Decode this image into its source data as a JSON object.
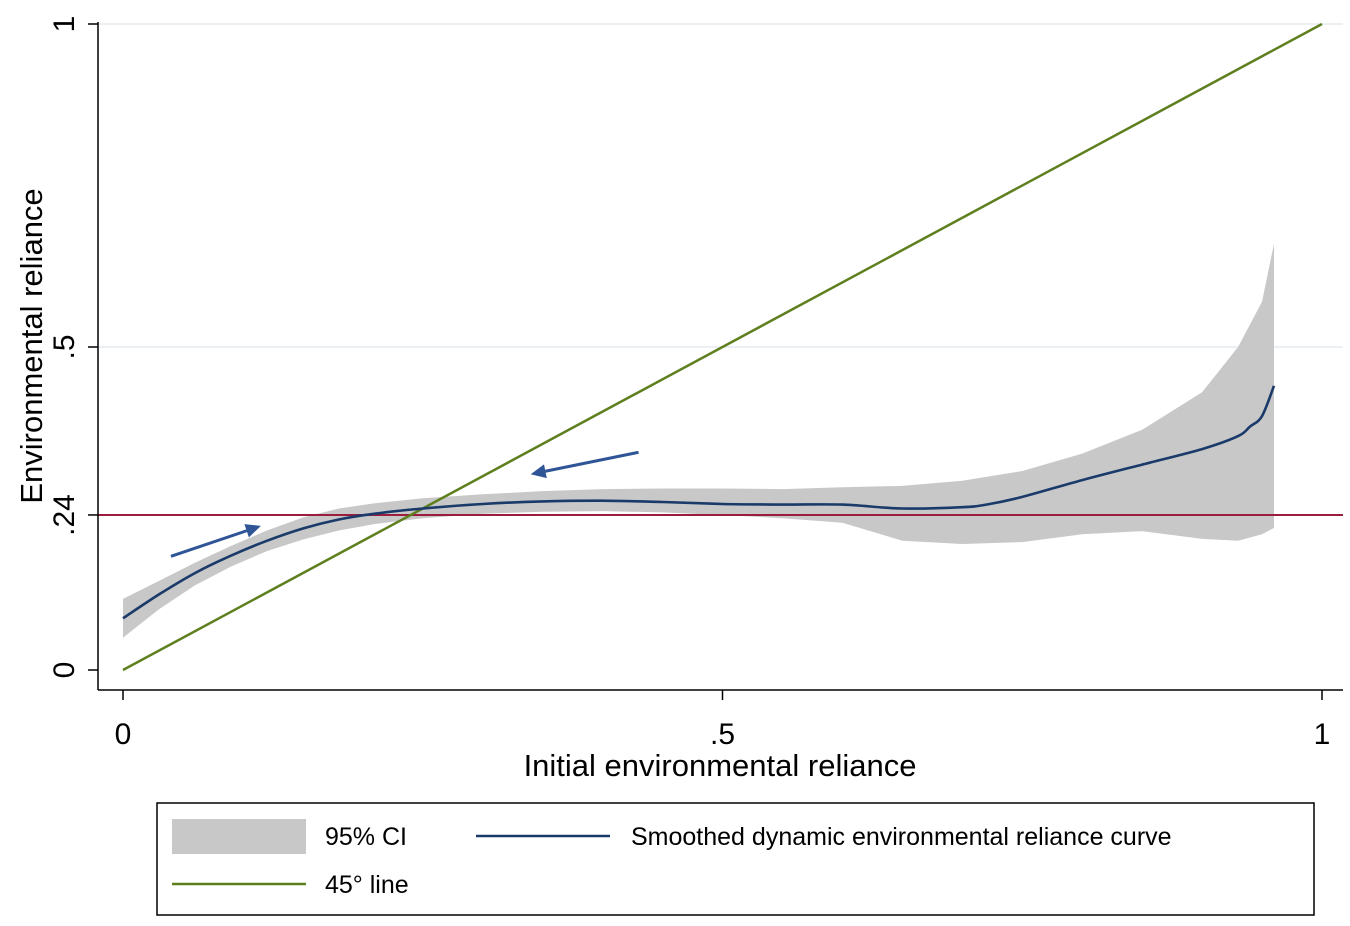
{
  "chart_data": {
    "type": "line",
    "title": "",
    "xlabel": "Initial environmental reliance",
    "ylabel": "Environmental reliance",
    "xlim": [
      0,
      1
    ],
    "ylim": [
      0,
      1
    ],
    "x_ticks": [
      {
        "value": 0,
        "label": "0"
      },
      {
        "value": 0.5,
        "label": ".5"
      },
      {
        "value": 1,
        "label": "1"
      }
    ],
    "y_ticks": [
      {
        "value": 0,
        "label": "0"
      },
      {
        "value": 0.24,
        "label": ".24"
      },
      {
        "value": 0.5,
        "label": ".5"
      },
      {
        "value": 1,
        "label": "1"
      }
    ],
    "gridlines": [
      0.5,
      1
    ],
    "reference_hline": {
      "y": 0.24,
      "color": "#9b1c3c"
    },
    "series": [
      {
        "name": "Smoothed dynamic environmental reliance curve",
        "kind": "line",
        "color": "#1a3a6a",
        "x": [
          0.0,
          0.03,
          0.06,
          0.09,
          0.12,
          0.15,
          0.18,
          0.21,
          0.25,
          0.3,
          0.35,
          0.4,
          0.45,
          0.5,
          0.55,
          0.6,
          0.65,
          0.7,
          0.72,
          0.75,
          0.8,
          0.85,
          0.9,
          0.93,
          0.94,
          0.95,
          0.96
        ],
        "y": [
          0.08,
          0.117,
          0.15,
          0.177,
          0.2,
          0.219,
          0.233,
          0.242,
          0.25,
          0.257,
          0.261,
          0.262,
          0.26,
          0.257,
          0.256,
          0.256,
          0.25,
          0.252,
          0.256,
          0.268,
          0.294,
          0.318,
          0.342,
          0.362,
          0.377,
          0.393,
          0.44
        ]
      },
      {
        "name": "95% CI",
        "kind": "band",
        "color": "#c8c8c8",
        "x": [
          0.0,
          0.03,
          0.06,
          0.09,
          0.12,
          0.15,
          0.18,
          0.21,
          0.25,
          0.3,
          0.35,
          0.4,
          0.45,
          0.5,
          0.55,
          0.6,
          0.65,
          0.7,
          0.75,
          0.8,
          0.85,
          0.9,
          0.93,
          0.95,
          0.96
        ],
        "lower": [
          0.05,
          0.094,
          0.131,
          0.16,
          0.184,
          0.202,
          0.216,
          0.226,
          0.235,
          0.242,
          0.245,
          0.246,
          0.244,
          0.24,
          0.235,
          0.228,
          0.2,
          0.195,
          0.198,
          0.21,
          0.215,
          0.203,
          0.2,
          0.21,
          0.22
        ],
        "upper": [
          0.11,
          0.138,
          0.166,
          0.192,
          0.216,
          0.236,
          0.25,
          0.258,
          0.266,
          0.272,
          0.277,
          0.28,
          0.281,
          0.281,
          0.28,
          0.283,
          0.285,
          0.293,
          0.308,
          0.335,
          0.372,
          0.43,
          0.5,
          0.57,
          0.66
        ]
      },
      {
        "name": "45° line",
        "kind": "line",
        "color": "#5e7f1e",
        "x": [
          0,
          1
        ],
        "y": [
          0,
          1
        ]
      }
    ],
    "annotations": [
      {
        "type": "arrow",
        "label": "arrow-up-right",
        "from": [
          0.04,
          0.176
        ],
        "to": [
          0.115,
          0.223
        ],
        "color": "#2f5597"
      },
      {
        "type": "arrow",
        "label": "arrow-left",
        "from": [
          0.43,
          0.337
        ],
        "to": [
          0.34,
          0.303
        ],
        "color": "#2f5597"
      }
    ],
    "legend": {
      "placement": "bottom",
      "entries": [
        {
          "label": "95% CI",
          "series": "95% CI"
        },
        {
          "label": "Smoothed dynamic environmental reliance curve",
          "series": "Smoothed dynamic environmental reliance curve"
        },
        {
          "label": "45° line",
          "series": "45° line"
        }
      ]
    }
  }
}
